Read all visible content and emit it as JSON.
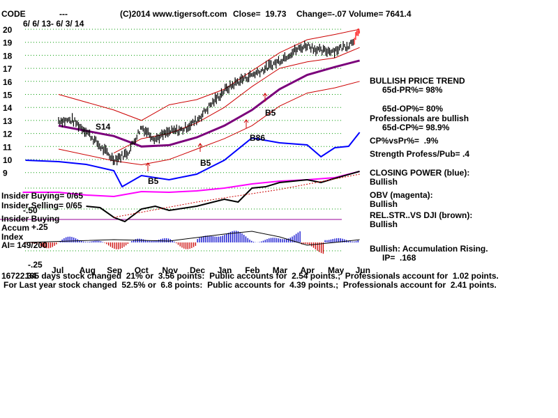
{
  "header": {
    "symbol": "CODE",
    "dashes": "---",
    "copyright": "(C)2014 www.tigersoft.com",
    "close": "Close=  19.73",
    "change": "Change=-.07",
    "volume": "Volume= 7641.4",
    "date_range": "6/ 6/ 13- 6/ 3/ 14"
  },
  "indicators": {
    "insider_buying_ratio": "Insider Buying= 0/65",
    "insider_selling_ratio": "Insider Selling= 0/65",
    "insider_buying_label": "Insider Buying",
    "accum": "Accum",
    "index": "Index",
    "ai": "AI= 149/200",
    "plus25": "+.25",
    "minus50": "-.50",
    "minus25": "-.25"
  },
  "signals": {
    "s14": "S14",
    "b5a": "B5",
    "b5b": "B5",
    "b5c": "B5",
    "b86": "B86"
  },
  "right_panel": {
    "trend_title": "BULLISH PRICE TREND",
    "pr": "65d-PR%= 98%",
    "op": "65d-OP%= 80%",
    "professionals": "Professionals are bullish",
    "cp": "65d-CP%= 98.9%",
    "cpvspr": "CP%vsPr%=  .9%",
    "strength": "Strength Profess/Pub= .4",
    "closing_power": "CLOSING POWER (blue):",
    "closing_power_val": "Bullish",
    "obv": "OBV (magenta):",
    "obv_val": "Bullish",
    "relstr": "REL.STR..VS DJI (brown):",
    "relstr_val": "Bullish",
    "accum_msg": "Bullish: Accumulation Rising.",
    "ip": "IP=  .168"
  },
  "footer": {
    "line1_prefix": "16722.34",
    "line1": "165 days stock changed  21% or  3.56 points:  Public accounts for  2.54 points.;  Professionals account for  1.02 points.",
    "line2": "For Last year stock changed  52.5% or  6.8 points:  Public accounts for  4.39 points.;  Professionals account for  2.41 points."
  },
  "colors": {
    "band": "#cc0000",
    "ma": "#7b007b",
    "closing_power": "#0000ff",
    "obv": "#ff00ff",
    "relstr": "#000000",
    "grid": "#009900",
    "accum_pos": "#0000cc",
    "accum_neg": "#cc0000"
  },
  "chart_data": {
    "type": "line",
    "title": "CODE",
    "x_labels": [
      "Jul",
      "Aug",
      "Sep",
      "Oct",
      "Nov",
      "Dec",
      "Jan",
      "Feb",
      "Mar",
      "Apr",
      "May",
      "Jun"
    ],
    "y_ticks": [
      20,
      19,
      18,
      17,
      16,
      15,
      14,
      13,
      12,
      11,
      10,
      9
    ],
    "ylim": [
      9,
      20
    ],
    "price": {
      "months": [
        0,
        0.5,
        1,
        1.5,
        2,
        2.5,
        3,
        3.5,
        4,
        4.5,
        5,
        5.5,
        6,
        6.5,
        7,
        7.5,
        8,
        8.5,
        9,
        9.5,
        10,
        10.5,
        10.9
      ],
      "values": [
        13.0,
        13.0,
        12.2,
        11.0,
        10.0,
        10.5,
        12.5,
        11.6,
        12.1,
        12.3,
        13.0,
        14.2,
        15.3,
        16.0,
        16.5,
        17.0,
        17.6,
        18.3,
        18.8,
        18.3,
        18.4,
        18.8,
        19.73
      ]
    },
    "moving_average": {
      "months": [
        0,
        2,
        3,
        4,
        5,
        6,
        7,
        8,
        9,
        10,
        10.9
      ],
      "values": [
        12.6,
        11.8,
        11.0,
        11.1,
        11.7,
        12.6,
        13.8,
        15.4,
        16.5,
        17.1,
        17.6
      ]
    },
    "upper_band": {
      "months": [
        0,
        2,
        3,
        4,
        5,
        6,
        7,
        8,
        9,
        10,
        10.9
      ],
      "values": [
        15.0,
        13.8,
        13.0,
        14.2,
        14.6,
        15.4,
        16.8,
        18.2,
        19.2,
        19.6,
        20.0
      ]
    },
    "lower_band": {
      "months": [
        0,
        2,
        3,
        4,
        5,
        6,
        7,
        8,
        9,
        10,
        10.9
      ],
      "values": [
        10.8,
        9.9,
        9.6,
        10.0,
        10.8,
        11.6,
        12.6,
        14.1,
        15.1,
        15.5,
        16.0
      ]
    },
    "sma_short": {
      "months": [
        2,
        3,
        4,
        5,
        6,
        7,
        8,
        9,
        10,
        10.9
      ],
      "values": [
        10.5,
        11.6,
        12.0,
        12.8,
        14.0,
        15.6,
        17.0,
        17.5,
        17.8,
        18.6
      ]
    }
  }
}
